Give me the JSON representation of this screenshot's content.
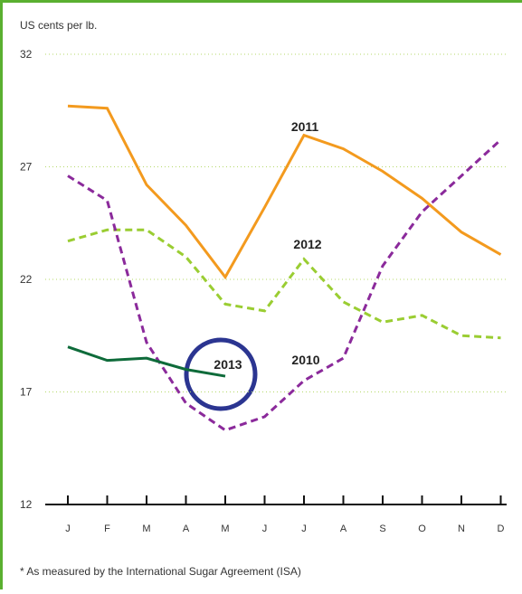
{
  "chart_data": {
    "type": "line",
    "y_axis_label": "US cents per lb.",
    "footnote": "* As measured by the International Sugar Agreement (ISA)",
    "categories": [
      "J",
      "F",
      "M",
      "A",
      "M",
      "J",
      "J",
      "A",
      "S",
      "O",
      "N",
      "D"
    ],
    "ylim": [
      12,
      32
    ],
    "yticks": [
      12,
      17,
      22,
      27,
      32
    ],
    "grid": true,
    "series": [
      {
        "name": "2011",
        "color": "#f39a1e",
        "dash": false,
        "values": [
          29.7,
          29.6,
          26.2,
          24.4,
          22.1,
          25.2,
          28.4,
          27.8,
          26.8,
          25.6,
          24.1,
          23.1
        ]
      },
      {
        "name": "2012",
        "color": "#9acd32",
        "dash": true,
        "values": [
          23.7,
          24.2,
          24.2,
          23.0,
          20.9,
          20.6,
          22.9,
          21.0,
          20.1,
          20.4,
          19.5,
          19.4
        ]
      },
      {
        "name": "2010",
        "color": "#8b2a9b",
        "dash": true,
        "values": [
          26.6,
          25.5,
          19.2,
          16.5,
          15.3,
          15.9,
          17.5,
          18.5,
          22.6,
          25.0,
          26.6,
          28.2
        ]
      },
      {
        "name": "2013",
        "color": "#0e6b3a",
        "dash": false,
        "values": [
          19.0,
          18.4,
          18.5,
          18.0,
          17.7,
          null,
          null,
          null,
          null,
          null,
          null,
          null
        ]
      }
    ]
  }
}
